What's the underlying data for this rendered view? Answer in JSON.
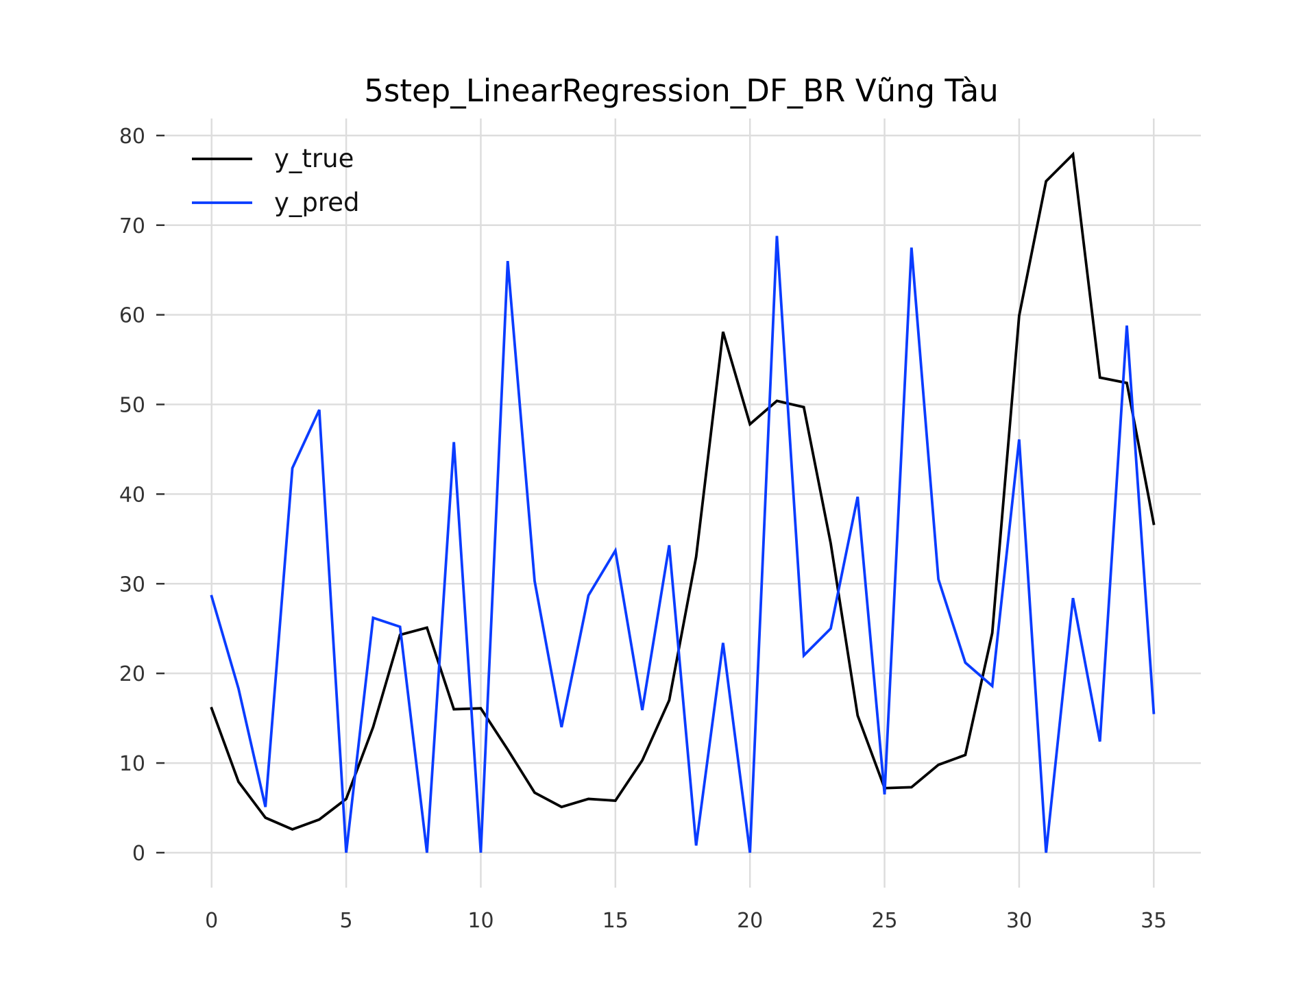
{
  "chart_data": {
    "type": "line",
    "title": "5step_LinearRegression_DF_BR Vũng Tàu",
    "xlabel": "",
    "ylabel": "",
    "xlim": [
      -1.75,
      36.75
    ],
    "ylim": [
      -3.9,
      81.9
    ],
    "xticks": [
      0,
      5,
      10,
      15,
      20,
      25,
      30,
      35
    ],
    "yticks": [
      0,
      10,
      20,
      30,
      40,
      50,
      60,
      70,
      80
    ],
    "grid": true,
    "legend_position": "top-left",
    "x": [
      0,
      1,
      2,
      3,
      4,
      5,
      6,
      7,
      8,
      9,
      10,
      11,
      12,
      13,
      14,
      15,
      16,
      17,
      18,
      19,
      20,
      21,
      22,
      23,
      24,
      25,
      26,
      27,
      28,
      29,
      30,
      31,
      32,
      33,
      34,
      35
    ],
    "series": [
      {
        "name": "y_true",
        "color": "#000000",
        "values": [
          16.1,
          7.9,
          3.9,
          2.6,
          3.7,
          6.0,
          14.0,
          24.3,
          25.1,
          16.0,
          16.1,
          11.5,
          6.7,
          5.1,
          6.0,
          5.8,
          10.3,
          17.0,
          33.0,
          58.1,
          47.8,
          50.4,
          49.7,
          34.5,
          15.3,
          7.2,
          7.3,
          9.8,
          10.9,
          24.5,
          59.9,
          74.9,
          77.9,
          53.0,
          52.4,
          36.7
        ]
      },
      {
        "name": "y_pred",
        "color": "#0a3cff",
        "values": [
          28.6,
          18.3,
          5.1,
          42.9,
          49.4,
          0.0,
          26.2,
          25.2,
          0.0,
          45.8,
          0.0,
          66.0,
          30.3,
          14.0,
          28.7,
          33.7,
          15.9,
          34.3,
          0.8,
          23.4,
          0.0,
          68.8,
          22.0,
          25.0,
          39.7,
          6.5,
          67.5,
          30.5,
          21.2,
          18.6,
          46.1,
          0.0,
          28.4,
          12.4,
          58.8,
          15.6
        ]
      }
    ]
  }
}
